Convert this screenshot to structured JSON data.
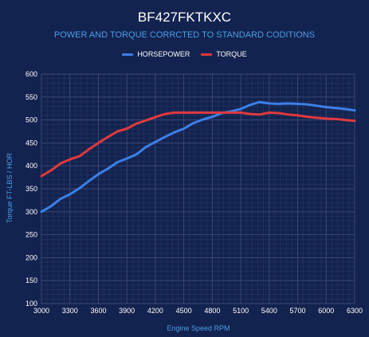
{
  "header": {
    "title": "BF427FKTKXC",
    "subtitle": "POWER AND TORQUE CORRCTED TO STANDARD CODITIONS"
  },
  "colors": {
    "background": "#13234f",
    "accent_text": "#4a9ee6",
    "horsepower": "#3d7fe8",
    "torque": "#e0393e",
    "grid": "#3c4a78",
    "tick_text": "#ffffff"
  },
  "legend": {
    "position": "top-center",
    "items": [
      {
        "label": "HORSEPOWER",
        "color": "#3d7fe8"
      },
      {
        "label": "TORQUE",
        "color": "#e0393e"
      }
    ]
  },
  "chart_data": {
    "type": "line",
    "title": "BF427FKTKXC",
    "subtitle": "POWER AND TORQUE CORRCTED TO STANDARD CODITIONS",
    "xlabel": "Engine Speed RPM",
    "ylabel": "Torque FT-LBS / HOR",
    "xlim": [
      3000,
      6300
    ],
    "ylim": [
      100,
      600
    ],
    "x_ticks": [
      3000,
      3300,
      3600,
      3900,
      4200,
      4500,
      4800,
      5100,
      5400,
      5700,
      6000,
      6300
    ],
    "y_ticks": [
      100,
      150,
      200,
      250,
      300,
      350,
      400,
      450,
      500,
      550,
      600
    ],
    "grid": true,
    "x": [
      3000,
      3100,
      3200,
      3300,
      3400,
      3500,
      3600,
      3700,
      3800,
      3900,
      4000,
      4100,
      4200,
      4300,
      4400,
      4500,
      4600,
      4700,
      4800,
      4900,
      5000,
      5100,
      5200,
      5300,
      5400,
      5500,
      5600,
      5700,
      5800,
      5900,
      6000,
      6100,
      6200,
      6300
    ],
    "series": [
      {
        "name": "HORSEPOWER",
        "values": [
          300,
          312,
          328,
          338,
          351,
          367,
          382,
          394,
          408,
          416,
          425,
          441,
          452,
          463,
          473,
          481,
          493,
          501,
          507,
          515,
          519,
          524,
          533,
          539,
          536,
          535,
          536,
          535,
          534,
          531,
          528,
          526,
          524,
          521
        ]
      },
      {
        "name": "TORQUE",
        "values": [
          378,
          390,
          405,
          414,
          421,
          436,
          450,
          463,
          475,
          481,
          492,
          499,
          506,
          513,
          516,
          516,
          516,
          516,
          516,
          516,
          516,
          516,
          513,
          512,
          516,
          515,
          512,
          510,
          507,
          505,
          503,
          502,
          500,
          498
        ]
      }
    ]
  }
}
